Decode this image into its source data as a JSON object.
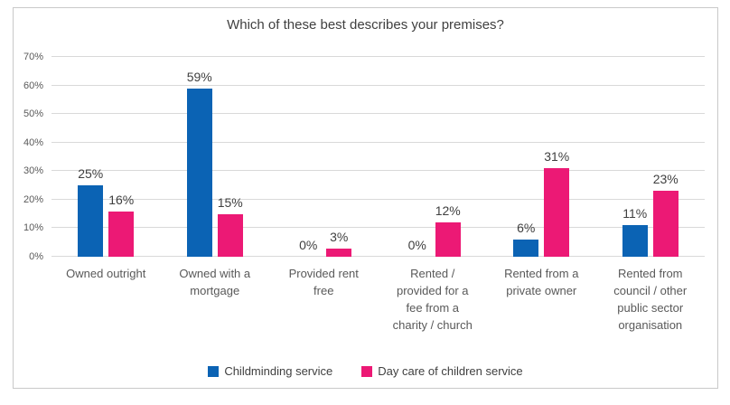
{
  "chart_data": {
    "type": "bar",
    "title": "Which of these best describes your premises?",
    "categories": [
      [
        "Owned outright"
      ],
      [
        "Owned with a",
        "mortgage"
      ],
      [
        "Provided rent",
        "free"
      ],
      [
        "Rented /",
        "provided for a",
        "fee from a",
        "charity / church"
      ],
      [
        "Rented from a",
        "private owner"
      ],
      [
        "Rented from",
        "council / other",
        "public sector",
        "organisation"
      ]
    ],
    "series": [
      {
        "name": "Childminding service",
        "color": "#0b63b4",
        "values": [
          25,
          59,
          0,
          0,
          6,
          11
        ]
      },
      {
        "name": "Day care of children service",
        "color": "#ec1975",
        "values": [
          16,
          15,
          3,
          12,
          31,
          23
        ]
      }
    ],
    "data_labels": [
      [
        "25%",
        "59%",
        "0%",
        "0%",
        "6%",
        "11%"
      ],
      [
        "16%",
        "15%",
        "3%",
        "12%",
        "31%",
        "23%"
      ]
    ],
    "ytick_labels": [
      "0%",
      "10%",
      "20%",
      "30%",
      "40%",
      "50%",
      "60%",
      "70%"
    ],
    "ylim": [
      0,
      70
    ],
    "ytick_step": 10,
    "ytick_suffix": "%",
    "value_suffix": "%",
    "grid": true,
    "legend_position": "bottom",
    "xlabel": "",
    "ylabel": ""
  },
  "colors": {
    "frame_border": "#c9c9c9",
    "grid": "#d9d9d9",
    "title_text": "#404040",
    "tick_text": "#595959",
    "data_label_text": "#3f3f3f",
    "category_text": "#595959",
    "legend_text": "#404040",
    "background": "#ffffff"
  }
}
